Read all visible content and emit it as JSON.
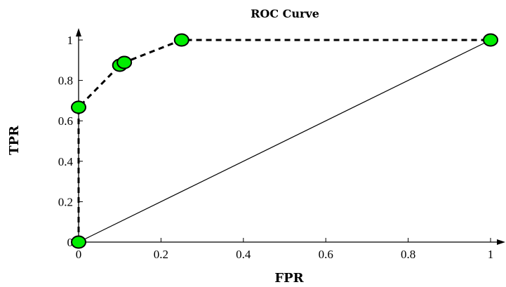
{
  "chart_data": {
    "type": "line",
    "title": "ROC Curve",
    "xlabel": "FPR",
    "ylabel": "TPR",
    "xlim": [
      0,
      1
    ],
    "ylim": [
      0,
      1
    ],
    "x_ticks": [
      "0",
      "0.2",
      "0.4",
      "0.6",
      "0.8",
      "1"
    ],
    "y_ticks": [
      "0",
      "0.2",
      "0.4",
      "0.6",
      "0.8",
      "1"
    ],
    "grid": false,
    "series": [
      {
        "style": "dashed line with circle markers",
        "marker_color": "#00ee00",
        "line_color": "#000000",
        "points": [
          {
            "x": 0,
            "y": 0
          },
          {
            "x": 0,
            "y": 0.667
          },
          {
            "x": 0.1,
            "y": 0.875
          },
          {
            "x": 0.111,
            "y": 0.889
          },
          {
            "x": 0.25,
            "y": 1
          },
          {
            "x": 1,
            "y": 1
          }
        ]
      },
      {
        "style": "solid diagonal reference line",
        "line_color": "#000000",
        "points": [
          {
            "x": 0,
            "y": 0
          },
          {
            "x": 1,
            "y": 1
          }
        ]
      }
    ]
  }
}
